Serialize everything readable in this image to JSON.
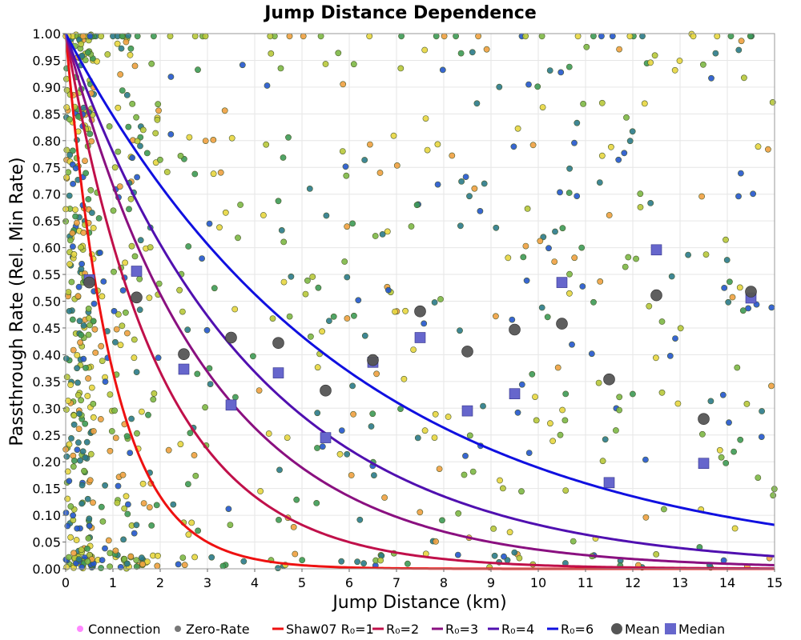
{
  "chart_data": {
    "type": "scatter",
    "title": "Jump Distance Dependence",
    "xlabel": "Jump Distance (km)",
    "ylabel": "Passthrough Rate (Rel. Min Rate)",
    "xlim": [
      0,
      15
    ],
    "ylim": [
      0,
      1
    ],
    "x_ticks": [
      "0",
      "1",
      "2",
      "3",
      "4",
      "5",
      "6",
      "7",
      "8",
      "9",
      "10",
      "11",
      "12",
      "13",
      "14",
      "15"
    ],
    "y_ticks": [
      "0.00",
      "0.05",
      "0.10",
      "0.15",
      "0.20",
      "0.25",
      "0.30",
      "0.35",
      "0.40",
      "0.45",
      "0.50",
      "0.55",
      "0.60",
      "0.65",
      "0.70",
      "0.75",
      "0.80",
      "0.85",
      "0.90",
      "0.95",
      "1.00"
    ],
    "grid": true,
    "legend_position": "bottom",
    "legend": [
      {
        "label": "Connection",
        "kind": "dot",
        "color": "#ff88ff"
      },
      {
        "label": "Zero-Rate",
        "kind": "dot",
        "color": "#777777"
      },
      {
        "label": "Shaw07 R₀=1",
        "kind": "line",
        "color": "#ee1111"
      },
      {
        "label": "R₀=2",
        "kind": "line",
        "color": "#c0104a"
      },
      {
        "label": "R₀=3",
        "kind": "line",
        "color": "#8a1080"
      },
      {
        "label": "R₀=4",
        "kind": "line",
        "color": "#5010b0"
      },
      {
        "label": "R₀=6",
        "kind": "line",
        "color": "#1010e0"
      },
      {
        "label": "Mean",
        "kind": "circle",
        "color": "#555555"
      },
      {
        "label": "Median",
        "kind": "square",
        "color": "#6666cc"
      }
    ],
    "curves": [
      {
        "name": "Shaw07 R₀=1",
        "R0": 1,
        "color": "#ee1111"
      },
      {
        "name": "R₀=2",
        "R0": 2,
        "color": "#c0104a"
      },
      {
        "name": "R₀=3",
        "R0": 3,
        "color": "#8a1080"
      },
      {
        "name": "R₀=4",
        "R0": 4,
        "color": "#5010b0"
      },
      {
        "name": "R₀=6",
        "R0": 6,
        "color": "#1010e0"
      }
    ],
    "mean": [
      [
        0.5,
        0.535
      ],
      [
        1.5,
        0.507
      ],
      [
        2.5,
        0.401
      ],
      [
        3.5,
        0.432
      ],
      [
        4.5,
        0.422
      ],
      [
        5.5,
        0.333
      ],
      [
        6.5,
        0.39
      ],
      [
        7.5,
        0.481
      ],
      [
        8.5,
        0.406
      ],
      [
        9.5,
        0.447
      ],
      [
        10.5,
        0.458
      ],
      [
        11.5,
        0.354
      ],
      [
        12.5,
        0.511
      ],
      [
        13.5,
        0.28
      ],
      [
        14.5,
        0.518
      ]
    ],
    "median": [
      [
        0.5,
        0.54
      ],
      [
        1.5,
        0.556
      ],
      [
        2.5,
        0.373
      ],
      [
        3.5,
        0.306
      ],
      [
        4.5,
        0.366
      ],
      [
        5.5,
        0.245
      ],
      [
        6.5,
        0.386
      ],
      [
        7.5,
        0.432
      ],
      [
        8.5,
        0.295
      ],
      [
        9.5,
        0.327
      ],
      [
        10.5,
        0.535
      ],
      [
        11.5,
        0.161
      ],
      [
        12.5,
        0.596
      ],
      [
        13.5,
        0.197
      ],
      [
        14.5,
        0.506
      ]
    ],
    "connection_points": {
      "count": 900,
      "note_colors": [
        "#e8d640",
        "#b8c83a",
        "#7db845",
        "#3d9a55",
        "#2a7a8a",
        "#2255cc",
        "#f0a040"
      ]
    }
  }
}
